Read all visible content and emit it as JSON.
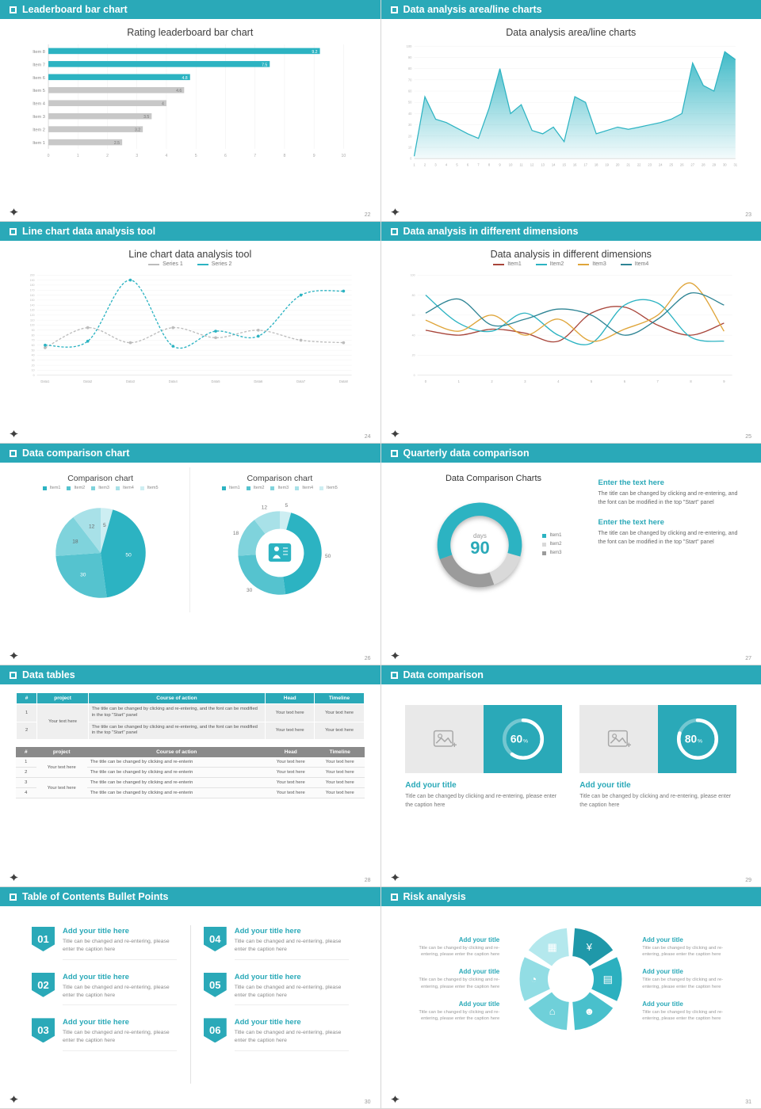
{
  "accent": "#2aa9b8",
  "slides": [
    {
      "header": "Leaderboard bar chart",
      "page": "22"
    },
    {
      "header": "Data analysis area/line charts",
      "page": "23"
    },
    {
      "header": "Line chart data analysis tool",
      "page": "24"
    },
    {
      "header": "Data analysis in different dimensions",
      "page": "25"
    },
    {
      "header": "Data comparison chart",
      "page": "26"
    },
    {
      "header": "Quarterly data comparison",
      "page": "27",
      "blocks": [
        {
          "heading": "Enter the text here",
          "body": "The title can be changed by clicking and re-entering, and the font can be modified in the top \"Start\" panel"
        },
        {
          "heading": "Enter the text here",
          "body": "The title can be changed by clicking and re-entering, and the font can be modified in the top \"Start\" panel"
        }
      ]
    },
    {
      "header": "Data tables",
      "page": "28",
      "table1": {
        "headers": [
          "#",
          "project",
          "Course of action",
          "Head",
          "Timeline"
        ],
        "project_text": "Your text here",
        "rows": [
          {
            "num": "1",
            "action": "The title can be changed by clicking and re-entering, and the font can be modified in the top \"Start\" panel",
            "head": "Your text here",
            "timeline": "Your text here"
          },
          {
            "num": "2",
            "action": "The title can be changed by clicking and re-entering, and the font can be modified in the top \"Start\" panel",
            "head": "Your text here",
            "timeline": "Your text here"
          }
        ]
      },
      "table2": {
        "headers": [
          "#",
          "project",
          "Course of action",
          "Head",
          "Timeline"
        ],
        "project_text_a": "Your text here",
        "project_text_b": "Your text here",
        "rows": [
          {
            "num": "1",
            "action": "The title can be changed by clicking and re-enterin",
            "head": "Your text here",
            "timeline": "Your text here"
          },
          {
            "num": "2",
            "action": "The title can be changed by clicking and re-enterin",
            "head": "Your text here",
            "timeline": "Your text here"
          },
          {
            "num": "3",
            "action": "The title can be changed by clicking and re-enterin",
            "head": "Your text here",
            "timeline": "Your text here"
          },
          {
            "num": "4",
            "action": "The title can be changed by clicking and re-enterin",
            "head": "Your text here",
            "timeline": "Your text here"
          }
        ]
      }
    },
    {
      "header": "Data comparison",
      "page": "29",
      "cards": [
        {
          "title": "Add your title",
          "caption": "Title can be changed by clicking and re-entering, please enter the caption here"
        },
        {
          "title": "Add your title",
          "caption": "Title can be changed by clicking and re-entering, please enter the caption here"
        }
      ]
    },
    {
      "header": "Table of Contents Bullet Points",
      "page": "30",
      "items": [
        {
          "num": "01",
          "title": "Add your title here",
          "caption": "Title can be changed and re-entering, please enter the caption here"
        },
        {
          "num": "02",
          "title": "Add your title here",
          "caption": "Title can be changed and re-entering, please enter the caption here"
        },
        {
          "num": "03",
          "title": "Add your title here",
          "caption": "Title can be changed and re-entering, please enter the caption here"
        },
        {
          "num": "04",
          "title": "Add your title here",
          "caption": "Title can be changed and re-entering, please enter the caption here"
        },
        {
          "num": "05",
          "title": "Add your title here",
          "caption": "Title can be changed and re-entering, please enter the caption here"
        },
        {
          "num": "06",
          "title": "Add your title here",
          "caption": "Title can be changed and re-entering, please enter the caption here"
        }
      ]
    },
    {
      "header": "Risk analysis",
      "page": "31",
      "left": [
        {
          "title": "Add your title",
          "caption": "Title can be changed by clicking and re-entering, please enter the caption here"
        },
        {
          "title": "Add your title",
          "caption": "Title can be changed by clicking and re-entering, please enter the caption here"
        },
        {
          "title": "Add your title",
          "caption": "Title can be changed by clicking and re-entering, please enter the caption here"
        }
      ],
      "right": [
        {
          "title": "Add your title",
          "caption": "Title can be changed by clicking and re-entering, please enter the caption here"
        },
        {
          "title": "Add your title",
          "caption": "Title can be changed by clicking and re-entering, please enter the caption here"
        },
        {
          "title": "Add your title",
          "caption": "Title can be changed by clicking and re-entering, please enter the caption here"
        }
      ],
      "wheel": [
        {
          "name": "money-bag-icon",
          "glyph": "¥",
          "color": "#1f98a9"
        },
        {
          "name": "coins-icon",
          "glyph": "▤",
          "color": "#2cb0bf"
        },
        {
          "name": "users-icon",
          "glyph": "☻",
          "color": "#49c0cc"
        },
        {
          "name": "bank-icon",
          "glyph": "⌂",
          "color": "#6fd0d9"
        },
        {
          "name": "pie-chart-icon",
          "glyph": "◔",
          "color": "#92dde4"
        },
        {
          "name": "bar-chart-icon",
          "glyph": "▦",
          "color": "#b4e8ed"
        }
      ]
    }
  ],
  "chart_data": [
    {
      "id": "leaderboard",
      "type": "bar",
      "orientation": "horizontal",
      "title": "Rating leaderboard bar chart",
      "categories": [
        "Item 8",
        "Item 7",
        "Item 6",
        "Item 5",
        "Item 4",
        "Item 3",
        "Item 2",
        "Item 1"
      ],
      "values": [
        9.2,
        7.5,
        4.8,
        4.6,
        4,
        3.5,
        3.2,
        2.5
      ],
      "colors": [
        "#2cb3c2",
        "#2cb3c2",
        "#2cb3c2",
        "#c8c8c8",
        "#c8c8c8",
        "#c8c8c8",
        "#c8c8c8",
        "#c8c8c8"
      ],
      "xlim": [
        0,
        10
      ],
      "xticks": [
        0,
        1,
        2,
        3,
        4,
        5,
        6,
        7,
        8,
        9,
        10
      ]
    },
    {
      "id": "area",
      "type": "area",
      "title": "Data analysis area/line charts",
      "color": "#2cb3c2",
      "x": [
        1,
        2,
        3,
        4,
        5,
        6,
        7,
        8,
        9,
        10,
        11,
        12,
        13,
        14,
        15,
        16,
        17,
        18,
        19,
        20,
        21,
        22,
        23,
        24,
        25,
        26,
        27,
        28,
        29,
        30,
        31
      ],
      "values": [
        2,
        55,
        35,
        32,
        27,
        22,
        18,
        45,
        80,
        40,
        48,
        25,
        22,
        28,
        15,
        55,
        50,
        22,
        25,
        28,
        26,
        28,
        30,
        32,
        35,
        40,
        85,
        65,
        60,
        95,
        88
      ],
      "ylim": [
        0,
        100
      ],
      "ytick_step": 10
    },
    {
      "id": "linetool",
      "type": "line",
      "title": "Line chart data analysis tool",
      "categories": [
        "Data1",
        "Data2",
        "Data3",
        "Data4",
        "Data5",
        "Data6",
        "Data7",
        "Data8"
      ],
      "ylim": [
        0,
        200
      ],
      "ytick_step": 10,
      "series": [
        {
          "name": "Series 1",
          "color": "#bcbcbc",
          "dashed": true,
          "markers": true,
          "values": [
            55,
            95,
            65,
            95,
            75,
            90,
            70,
            65
          ]
        },
        {
          "name": "Series 2",
          "color": "#2cb3c2",
          "dashed": true,
          "markers": true,
          "values": [
            60,
            68,
            190,
            58,
            88,
            78,
            160,
            168
          ]
        }
      ]
    },
    {
      "id": "dimensions",
      "type": "line",
      "title": "Data analysis in different dimensions",
      "x": [
        0,
        1,
        2,
        3,
        4,
        5,
        6,
        7,
        8,
        9
      ],
      "ylim": [
        0,
        100
      ],
      "ytick_step": 20,
      "series": [
        {
          "name": "Item1",
          "color": "#a8453a",
          "values": [
            45,
            40,
            46,
            42,
            34,
            62,
            68,
            50,
            40,
            52
          ]
        },
        {
          "name": "Item2",
          "color": "#2cb3c2",
          "values": [
            80,
            52,
            44,
            62,
            40,
            32,
            70,
            72,
            38,
            34
          ]
        },
        {
          "name": "Item3",
          "color": "#dfa53a",
          "values": [
            55,
            44,
            60,
            40,
            56,
            34,
            46,
            60,
            92,
            44
          ]
        },
        {
          "name": "Item4",
          "color": "#2e8494",
          "values": [
            62,
            76,
            50,
            56,
            66,
            60,
            40,
            56,
            82,
            70
          ]
        }
      ]
    },
    {
      "id": "pie1",
      "type": "pie",
      "title": "Comparison chart",
      "labels": [
        "Item1",
        "Item2",
        "Item3",
        "Item4",
        "Item5"
      ],
      "values": [
        50,
        30,
        18,
        12,
        5
      ],
      "colors": [
        "#2cb3c2",
        "#55c3cf",
        "#7fd3dc",
        "#a8e1e8",
        "#cdeef2"
      ],
      "draw_order": [
        4,
        0,
        1,
        2,
        3
      ]
    },
    {
      "id": "pie2",
      "type": "donut",
      "title": "Comparison chart",
      "labels": [
        "Item1",
        "Item2",
        "Item3",
        "Item4",
        "Item5"
      ],
      "values": [
        50,
        30,
        18,
        12,
        5
      ],
      "colors": [
        "#2cb3c2",
        "#55c3cf",
        "#7fd3dc",
        "#a8e1e8",
        "#cdeef2"
      ],
      "draw_order": [
        4,
        0,
        1,
        2,
        3
      ]
    },
    {
      "id": "donut90",
      "type": "donut",
      "title": "Data Comparison Charts",
      "labels": [
        "Item1",
        "Item2",
        "Item3"
      ],
      "values": [
        60,
        15,
        25
      ],
      "colors": [
        "#2cb3c2",
        "#d9d9d9",
        "#9b9b9b"
      ],
      "center_label": "days",
      "center_value": "90"
    },
    {
      "id": "ring60",
      "type": "progress",
      "value": 60
    },
    {
      "id": "ring80",
      "type": "progress",
      "value": 80
    }
  ]
}
